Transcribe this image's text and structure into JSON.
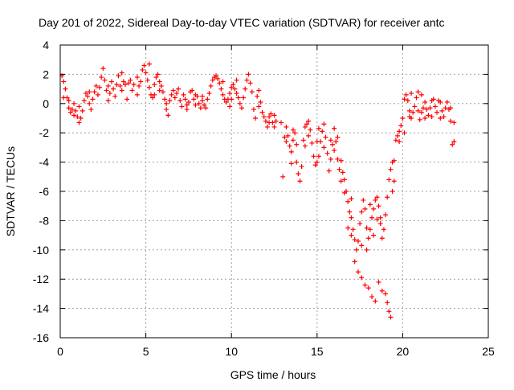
{
  "chart_data": {
    "type": "scatter",
    "title": "Day 201 of 2022, Sidereal Day-to-day VTEC variation (SDTVAR) for receiver antc",
    "xlabel": "GPS time / hours",
    "ylabel": "SDTVAR / TECUs",
    "xlim": [
      0,
      25
    ],
    "ylim": [
      -16,
      4
    ],
    "x_ticks": [
      0,
      5,
      10,
      15,
      20,
      25
    ],
    "y_ticks": [
      -16,
      -14,
      -12,
      -10,
      -8,
      -6,
      -4,
      -2,
      0,
      2,
      4
    ],
    "grid": true,
    "marker": "+",
    "series": [
      {
        "name": "SDTVAR",
        "color": "#ff0000",
        "points": [
          [
            0.1,
            1.9
          ],
          [
            0.2,
            1.5
          ],
          [
            0.3,
            1.0
          ],
          [
            0.4,
            0.4
          ],
          [
            0.5,
            -0.3
          ],
          [
            0.6,
            -0.6
          ],
          [
            0.7,
            -0.4
          ],
          [
            0.8,
            0.0
          ],
          [
            0.9,
            -0.5
          ],
          [
            1.0,
            -0.9
          ],
          [
            1.1,
            -1.3
          ],
          [
            1.2,
            -1.0
          ],
          [
            1.3,
            -0.5
          ],
          [
            1.4,
            0.2
          ],
          [
            1.5,
            0.7
          ],
          [
            1.6,
            0.5
          ],
          [
            1.7,
            0.0
          ],
          [
            1.8,
            -0.4
          ],
          [
            1.9,
            0.3
          ],
          [
            2.0,
            0.8
          ],
          [
            2.1,
            1.2
          ],
          [
            2.2,
            0.6
          ],
          [
            2.3,
            1.1
          ],
          [
            2.4,
            1.8
          ],
          [
            2.5,
            2.4
          ],
          [
            2.6,
            1.6
          ],
          [
            2.7,
            0.9
          ],
          [
            2.8,
            1.2
          ],
          [
            2.9,
            0.7
          ],
          [
            3.0,
            1.5
          ],
          [
            3.1,
            1.0
          ],
          [
            3.2,
            0.5
          ],
          [
            3.3,
            1.3
          ],
          [
            3.4,
            1.9
          ],
          [
            3.5,
            1.2
          ],
          [
            3.6,
            2.1
          ],
          [
            3.7,
            1.5
          ],
          [
            3.8,
            1.3
          ],
          [
            3.9,
            0.3
          ],
          [
            4.0,
            1.4
          ],
          [
            4.1,
            1.6
          ],
          [
            4.3,
            1.3
          ],
          [
            4.5,
            1.8
          ],
          [
            4.6,
            1.2
          ],
          [
            4.7,
            1.5
          ],
          [
            4.8,
            2.3
          ],
          [
            4.9,
            2.6
          ],
          [
            5.0,
            2.1
          ],
          [
            5.1,
            1.6
          ],
          [
            5.2,
            1.1
          ],
          [
            5.3,
            0.6
          ],
          [
            5.4,
            0.4
          ],
          [
            5.5,
            1.3
          ],
          [
            5.6,
            1.8
          ],
          [
            5.7,
            2.0
          ],
          [
            5.8,
            1.5
          ],
          [
            5.9,
            1.2
          ],
          [
            6.0,
            0.8
          ],
          [
            6.1,
            0.3
          ],
          [
            6.2,
            -0.4
          ],
          [
            6.3,
            -0.8
          ],
          [
            6.4,
            0.2
          ],
          [
            6.5,
            0.6
          ],
          [
            6.6,
            0.9
          ],
          [
            6.7,
            0.4
          ],
          [
            6.8,
            0.7
          ],
          [
            6.9,
            1.0
          ],
          [
            7.0,
            0.2
          ],
          [
            7.1,
            -0.2
          ],
          [
            7.2,
            0.6
          ],
          [
            7.3,
            0.3
          ],
          [
            7.4,
            -0.4
          ],
          [
            7.5,
            0.1
          ],
          [
            7.6,
            0.8
          ],
          [
            7.7,
            0.9
          ],
          [
            7.8,
            0.3
          ],
          [
            7.9,
            -0.1
          ],
          [
            8.0,
            0.5
          ],
          [
            8.1,
            0.0
          ],
          [
            8.2,
            -0.3
          ],
          [
            8.3,
            0.2
          ],
          [
            8.4,
            -0.1
          ],
          [
            8.5,
            -0.3
          ],
          [
            8.6,
            0.3
          ],
          [
            8.7,
            0.7
          ],
          [
            8.8,
            1.2
          ],
          [
            8.9,
            1.6
          ],
          [
            9.0,
            1.8
          ],
          [
            9.1,
            1.9
          ],
          [
            9.2,
            1.7
          ],
          [
            9.3,
            1.4
          ],
          [
            9.4,
            1.0
          ],
          [
            9.5,
            0.6
          ],
          [
            9.6,
            0.3
          ],
          [
            9.7,
            0.1
          ],
          [
            9.8,
            0.3
          ],
          [
            9.9,
            0.7
          ],
          [
            10.0,
            1.1
          ],
          [
            10.1,
            1.3
          ],
          [
            10.2,
            1.0
          ],
          [
            10.3,
            0.7
          ],
          [
            10.4,
            0.4
          ],
          [
            10.5,
            0.0
          ],
          [
            10.6,
            -0.3
          ],
          [
            10.7,
            0.4
          ],
          [
            10.8,
            1.0
          ],
          [
            10.9,
            1.6
          ],
          [
            11.0,
            2.0
          ],
          [
            11.1,
            1.4
          ],
          [
            11.2,
            0.8
          ],
          [
            11.3,
            -0.4
          ],
          [
            11.4,
            -1.0
          ],
          [
            11.5,
            0.5
          ],
          [
            11.6,
            0.9
          ],
          [
            11.7,
            0.1
          ],
          [
            11.8,
            -0.6
          ],
          [
            11.9,
            -0.9
          ],
          [
            12.0,
            -1.2
          ],
          [
            12.1,
            -1.6
          ],
          [
            12.2,
            -1.3
          ],
          [
            12.3,
            -0.7
          ],
          [
            12.4,
            -1.3
          ],
          [
            12.5,
            -1.6
          ],
          [
            12.6,
            -1.2
          ],
          [
            13.0,
            -5.0
          ],
          [
            13.1,
            -2.3
          ],
          [
            13.2,
            -1.6
          ],
          [
            13.3,
            -2.2
          ],
          [
            13.4,
            -2.9
          ],
          [
            13.5,
            -3.3
          ],
          [
            13.6,
            -2.5
          ],
          [
            13.7,
            -2.0
          ],
          [
            13.8,
            -2.8
          ],
          [
            13.9,
            -4.8
          ],
          [
            14.0,
            -5.3
          ],
          [
            14.1,
            -4.3
          ],
          [
            14.2,
            -2.5
          ],
          [
            14.3,
            -1.6
          ],
          [
            14.4,
            -1.4
          ],
          [
            14.5,
            -1.2
          ],
          [
            14.6,
            -1.8
          ],
          [
            14.7,
            -2.7
          ],
          [
            14.8,
            -3.6
          ],
          [
            14.9,
            -4.2
          ],
          [
            15.0,
            -4.0
          ],
          [
            15.1,
            -3.6
          ],
          [
            15.2,
            -2.6
          ],
          [
            15.3,
            -1.9
          ],
          [
            15.4,
            -1.4
          ],
          [
            15.5,
            -2.3
          ],
          [
            15.6,
            -3.4
          ],
          [
            15.7,
            -4.6
          ],
          [
            15.8,
            -3.8
          ],
          [
            15.9,
            -2.8
          ],
          [
            16.0,
            -1.7
          ],
          [
            16.1,
            -2.6
          ],
          [
            16.2,
            -3.8
          ],
          [
            16.3,
            -4.5
          ],
          [
            16.4,
            -3.9
          ],
          [
            16.5,
            -4.7
          ],
          [
            16.6,
            -5.2
          ],
          [
            16.7,
            -6.0
          ],
          [
            16.8,
            -6.7
          ],
          [
            16.9,
            -7.4
          ],
          [
            17.0,
            -7.8
          ],
          [
            17.1,
            -8.6
          ],
          [
            17.2,
            -9.3
          ],
          [
            17.3,
            -10.0
          ],
          [
            17.4,
            -9.4
          ],
          [
            17.5,
            -8.2
          ],
          [
            17.6,
            -7.4
          ],
          [
            17.7,
            -6.6
          ],
          [
            17.8,
            -7.2
          ],
          [
            17.9,
            -8.5
          ],
          [
            18.0,
            -9.2
          ],
          [
            18.1,
            -8.6
          ],
          [
            18.2,
            -7.8
          ],
          [
            18.3,
            -7.2
          ],
          [
            18.4,
            -6.6
          ],
          [
            18.5,
            -6.4
          ],
          [
            18.6,
            -7.0
          ],
          [
            18.7,
            -7.8
          ],
          [
            18.8,
            -9.2
          ],
          [
            18.9,
            -8.6
          ],
          [
            19.0,
            -7.6
          ],
          [
            19.1,
            -6.4
          ],
          [
            19.2,
            -5.2
          ],
          [
            19.3,
            -4.5
          ],
          [
            19.4,
            -4.0
          ],
          [
            19.5,
            -3.9
          ],
          [
            19.6,
            -2.5
          ],
          [
            19.7,
            -2.2
          ],
          [
            19.8,
            -1.9
          ],
          [
            19.9,
            -1.5
          ],
          [
            20.0,
            -1.0
          ],
          [
            20.1,
            0.3
          ],
          [
            20.2,
            0.6
          ],
          [
            20.3,
            0.2
          ],
          [
            20.4,
            -0.5
          ],
          [
            20.5,
            -1.0
          ],
          [
            20.6,
            -0.6
          ],
          [
            20.7,
            -0.2
          ],
          [
            20.8,
            0.4
          ],
          [
            20.9,
            -0.5
          ],
          [
            21.0,
            -1.1
          ],
          [
            21.1,
            -0.6
          ],
          [
            21.2,
            -0.3
          ],
          [
            21.3,
            0.1
          ],
          [
            21.4,
            -0.4
          ],
          [
            21.5,
            -0.8
          ],
          [
            21.6,
            -0.3
          ],
          [
            21.7,
            0.2
          ],
          [
            21.8,
            0.3
          ],
          [
            21.9,
            -0.2
          ],
          [
            22.0,
            -0.6
          ],
          [
            22.1,
            0.2
          ],
          [
            22.2,
            0.1
          ],
          [
            22.3,
            -0.5
          ],
          [
            22.4,
            -0.9
          ],
          [
            22.5,
            -0.3
          ],
          [
            22.6,
            0.1
          ],
          [
            22.7,
            -0.4
          ],
          [
            22.8,
            -1.2
          ],
          [
            22.9,
            -2.8
          ],
          [
            0.2,
            0.4
          ],
          [
            0.5,
            0.2
          ],
          [
            0.8,
            -0.8
          ],
          [
            1.1,
            -0.2
          ],
          [
            1.7,
            0.8
          ],
          [
            2.8,
            0.2
          ],
          [
            3.6,
            0.9
          ],
          [
            4.2,
            0.9
          ],
          [
            4.5,
            0.6
          ],
          [
            5.2,
            2.7
          ],
          [
            5.5,
            0.6
          ],
          [
            5.8,
            0.9
          ],
          [
            6.2,
            0.0
          ],
          [
            7.4,
            -0.1
          ],
          [
            7.9,
            0.6
          ],
          [
            8.3,
            0.5
          ],
          [
            9.5,
            1.5
          ],
          [
            10.3,
            1.6
          ],
          [
            11.6,
            -0.2
          ],
          [
            12.2,
            -0.9
          ],
          [
            12.5,
            -0.8
          ],
          [
            13.2,
            -2.6
          ],
          [
            13.5,
            -4.1
          ],
          [
            13.8,
            -4.0
          ],
          [
            14.5,
            -2.2
          ],
          [
            15.0,
            -2.6
          ],
          [
            15.4,
            -3.0
          ],
          [
            15.8,
            -2.5
          ],
          [
            16.2,
            -2.3
          ],
          [
            16.6,
            -6.1
          ],
          [
            16.8,
            -8.5
          ],
          [
            17.0,
            -9.0
          ],
          [
            17.2,
            -10.8
          ],
          [
            17.4,
            -11.5
          ],
          [
            17.6,
            -11.9
          ],
          [
            17.8,
            -12.4
          ],
          [
            18.0,
            -12.6
          ],
          [
            18.2,
            -13.2
          ],
          [
            18.4,
            -13.5
          ],
          [
            18.6,
            -12.2
          ],
          [
            18.8,
            -12.8
          ],
          [
            19.0,
            -13.0
          ],
          [
            19.1,
            -13.6
          ],
          [
            19.2,
            -14.2
          ],
          [
            19.3,
            -14.6
          ],
          [
            17.6,
            -9.7
          ],
          [
            17.9,
            -10.0
          ],
          [
            18.3,
            -9.0
          ],
          [
            18.7,
            -8.2
          ],
          [
            18.1,
            -6.9
          ],
          [
            18.5,
            -7.9
          ],
          [
            17.0,
            -6.5
          ],
          [
            16.0,
            -3.2
          ],
          [
            15.1,
            -1.7
          ],
          [
            19.4,
            -6.0
          ],
          [
            19.5,
            -5.3
          ],
          [
            19.8,
            -2.6
          ],
          [
            20.1,
            -2.0
          ],
          [
            20.4,
            -0.9
          ],
          [
            20.9,
            0.8
          ],
          [
            21.3,
            -1.0
          ],
          [
            21.7,
            -0.9
          ],
          [
            22.2,
            -1.0
          ],
          [
            22.8,
            -0.3
          ],
          [
            23.0,
            -1.3
          ],
          [
            23.0,
            -2.6
          ],
          [
            21.1,
            0.6
          ],
          [
            20.5,
            0.7
          ],
          [
            10.0,
            0.3
          ],
          [
            9.9,
            -0.2
          ],
          [
            12.9,
            -1.3
          ],
          [
            13.6,
            -1.8
          ],
          [
            14.3,
            -2.9
          ],
          [
            16.4,
            -5.3
          ]
        ]
      }
    ]
  }
}
